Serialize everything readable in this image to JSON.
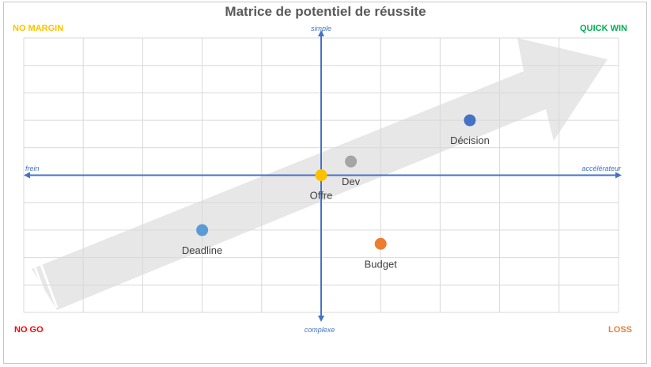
{
  "chart_data": {
    "type": "scatter",
    "title": "Matrice de potentiel de réussite",
    "xlim": [
      -5,
      5
    ],
    "ylim": [
      -5,
      5
    ],
    "grid": true,
    "axes": {
      "x_negative": "frein",
      "x_positive": "accélérateur",
      "y_positive": "simple",
      "y_negative": "complexe"
    },
    "quadrants": {
      "top_left": "NO MARGIN",
      "top_right": "QUICK WIN",
      "bottom_left": "NO GO",
      "bottom_right": "LOSS"
    },
    "points": [
      {
        "label": "Décision",
        "x": 2.5,
        "y": 2.0
      },
      {
        "label": "Dev",
        "x": 0.5,
        "y": 0.5
      },
      {
        "label": "Offre",
        "x": 0,
        "y": 0
      },
      {
        "label": "Deadline",
        "x": -2.0,
        "y": -2.0
      },
      {
        "label": "Budget",
        "x": 1.0,
        "y": -2.5
      }
    ]
  },
  "colors": {
    "axis": "#4472c4",
    "arrow": "#e7e7e7",
    "grid": "#d9d9d9",
    "no_margin": "#ffc000",
    "quick_win": "#00b050",
    "no_go": "#ff0000",
    "loss": "#ed7d31",
    "point_colors": [
      "#4472c4",
      "#a5a5a5",
      "#ffc000",
      "#5b9bd5",
      "#ed7d31"
    ]
  }
}
